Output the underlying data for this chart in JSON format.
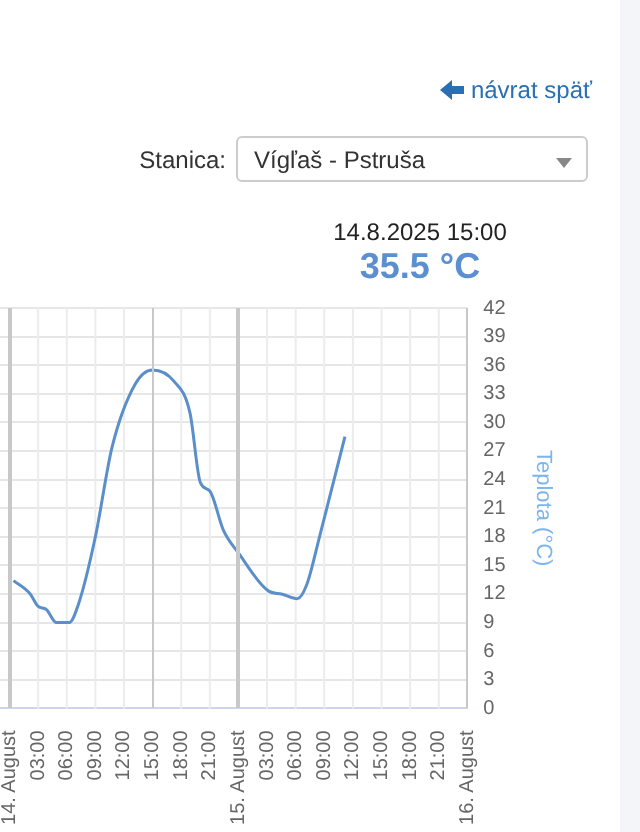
{
  "chart_data": {
    "type": "line",
    "ylabel": "Teplota (°C)",
    "annotations": [
      "návrat späť",
      "Stanica:",
      "Vígľaš - Pstruša",
      "14.8.2025 15:00",
      "35.5 °C"
    ],
    "x": [
      "2025-08-14T00:25",
      "2025-08-14T02:10",
      "2025-08-14T03:00",
      "2025-08-14T03:50",
      "2025-08-14T04:55",
      "2025-08-14T06:15",
      "2025-08-14T07:15",
      "2025-08-14T09:00",
      "2025-08-14T10:45",
      "2025-08-14T13:10",
      "2025-08-14T15:00",
      "2025-08-14T17:15",
      "2025-08-14T18:55",
      "2025-08-14T20:00",
      "2025-08-14T21:00",
      "2025-08-14T22:25",
      "2025-08-15T00:00",
      "2025-08-15T03:10",
      "2025-08-15T04:30",
      "2025-08-15T06:10",
      "2025-08-15T07:10",
      "2025-08-15T08:30",
      "2025-08-15T11:10"
    ],
    "series": [
      {
        "color": "#5b8fc9",
        "values": [
          13.4,
          12.0,
          10.7,
          10.4,
          9.0,
          9.0,
          11,
          18,
          27.4,
          34,
          35.5,
          34.3,
          31,
          23.7,
          22.8,
          18.7,
          16.3,
          12.3,
          12,
          11.5,
          13,
          18,
          28.5
        ]
      }
    ],
    "xlim": [
      "2025-08-13T23:00",
      "2025-08-16T00:00"
    ],
    "xticks": [
      {
        "value": "2025-08-14T00:00",
        "label": "14. August"
      },
      {
        "value": "2025-08-14T03:00",
        "label": "03:00"
      },
      {
        "value": "2025-08-14T06:00",
        "label": "06:00"
      },
      {
        "value": "2025-08-14T09:00",
        "label": "09:00"
      },
      {
        "value": "2025-08-14T12:00",
        "label": "12:00"
      },
      {
        "value": "2025-08-14T15:00",
        "label": "15:00"
      },
      {
        "value": "2025-08-14T18:00",
        "label": "18:00"
      },
      {
        "value": "2025-08-14T21:00",
        "label": "21:00"
      },
      {
        "value": "2025-08-15T00:00",
        "label": "15. August"
      },
      {
        "value": "2025-08-15T03:00",
        "label": "03:00"
      },
      {
        "value": "2025-08-15T06:00",
        "label": "06:00"
      },
      {
        "value": "2025-08-15T09:00",
        "label": "09:00"
      },
      {
        "value": "2025-08-15T12:00",
        "label": "12:00"
      },
      {
        "value": "2025-08-15T15:00",
        "label": "15:00"
      },
      {
        "value": "2025-08-15T18:00",
        "label": "18:00"
      },
      {
        "value": "2025-08-15T21:00",
        "label": "21:00"
      },
      {
        "value": "2025-08-16T00:00",
        "label": "16. August"
      }
    ],
    "ylim": [
      0,
      42
    ],
    "yticks": [
      0,
      3,
      6,
      9,
      12,
      15,
      18,
      21,
      24,
      27,
      30,
      33,
      36,
      39,
      42
    ],
    "ref_lines": [
      {
        "axis": "x",
        "value": "2025-08-14T00:00",
        "color": "#c8c8c8"
      },
      {
        "axis": "x",
        "value": "2025-08-14T15:00",
        "color": "#c8c8c8"
      },
      {
        "axis": "x",
        "value": "2025-08-15T00:00",
        "color": "#c8c8c8"
      },
      {
        "axis": "x",
        "value": "2025-08-16T00:00",
        "color": "#c8c8c8"
      }
    ],
    "grid": true,
    "legend": false,
    "marker": "none",
    "line_style": "solid"
  }
}
